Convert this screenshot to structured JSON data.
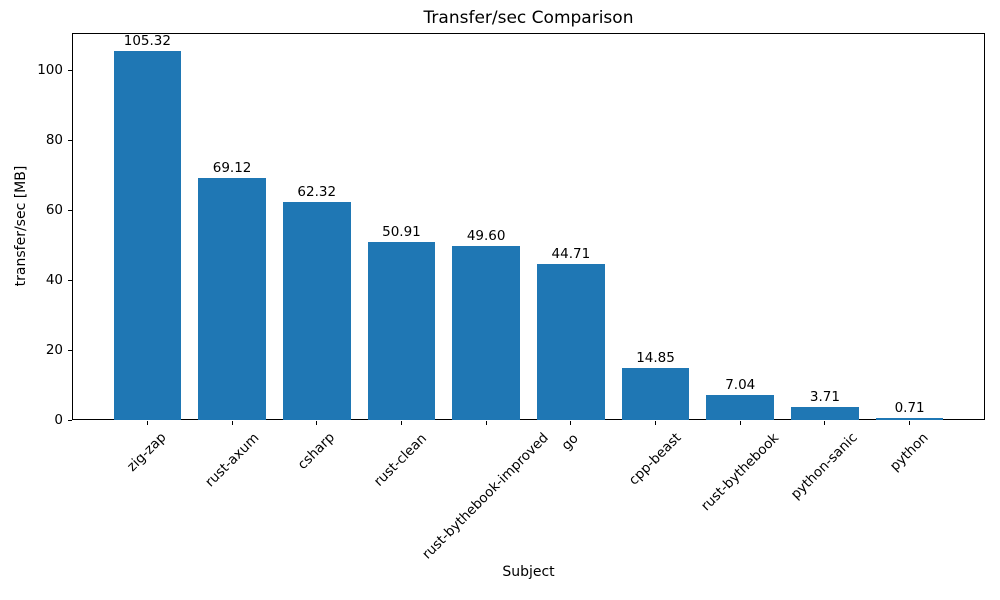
{
  "chart_data": {
    "type": "bar",
    "title": "Transfer/sec Comparison",
    "xlabel": "Subject",
    "ylabel": "transfer/sec [MB]",
    "categories": [
      "zig-zap",
      "rust-axum",
      "csharp",
      "rust-clean",
      "rust-bythebook-improved",
      "go",
      "cpp-beast",
      "rust-bythebook",
      "python-sanic",
      "python"
    ],
    "values": [
      105.32,
      69.12,
      62.32,
      50.91,
      49.6,
      44.71,
      14.85,
      7.04,
      3.71,
      0.71
    ],
    "bar_value_labels": [
      "105.32",
      "69.12",
      "62.32",
      "50.91",
      "49.60",
      "44.71",
      "14.85",
      "7.04",
      "3.71",
      "0.71"
    ],
    "yticks": [
      0,
      20,
      40,
      60,
      80,
      100
    ],
    "ylim": [
      0,
      110.6
    ],
    "bar_color": "#1f77b4",
    "grid": false,
    "legend_position": "none"
  }
}
